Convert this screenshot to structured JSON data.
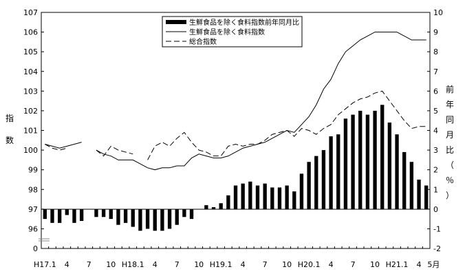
{
  "chart_data": {
    "type": "bar+line",
    "x_tick_labels": [
      "H17.1",
      "4",
      "7",
      "10",
      "H18.1",
      "4",
      "7",
      "10",
      "H19.1",
      "4",
      "7",
      "10",
      "H20.1",
      "4",
      "7",
      "10",
      "H21.1",
      "4",
      "5月"
    ],
    "left_axis": {
      "label": "指数",
      "range": [
        96,
        107
      ],
      "ticks": [
        "0",
        "96",
        "97",
        "98",
        "99",
        "100",
        "101",
        "102",
        "103",
        "104",
        "105",
        "106",
        "107"
      ],
      "break": true
    },
    "right_axis": {
      "label": "前年同月比（％）",
      "range": [
        -2,
        10
      ],
      "ticks": [
        "-2",
        "-1",
        "0",
        "1",
        "2",
        "3",
        "4",
        "5",
        "6",
        "7",
        "8",
        "9",
        "10"
      ]
    },
    "legend": {
      "position": "top-center",
      "entries": [
        {
          "label": "生鮮食品を除く食料指数前年同月比",
          "style": "bar"
        },
        {
          "label": "生鮮食品を除く食料指数",
          "style": "solid"
        },
        {
          "label": "総合指数",
          "style": "dashed"
        }
      ]
    },
    "series": [
      {
        "name": "生鮮食品を除く食料指数前年同月比",
        "axis": "right",
        "style": "bar",
        "values": [
          -0.5,
          -0.7,
          -0.7,
          -0.3,
          -0.7,
          -0.6,
          null,
          -0.4,
          -0.4,
          -0.5,
          -0.8,
          -0.7,
          -0.9,
          -1.1,
          -1.0,
          -1.1,
          -1.1,
          -1.0,
          -0.8,
          -0.4,
          -0.5,
          null,
          0.2,
          0.1,
          0.3,
          0.7,
          1.2,
          1.3,
          1.4,
          1.2,
          1.3,
          1.1,
          1.1,
          1.2,
          0.9,
          1.8,
          2.4,
          2.7,
          3.0,
          3.7,
          3.8,
          4.6,
          4.8,
          5.0,
          4.8,
          5.0,
          5.3,
          4.4,
          3.8,
          2.9,
          2.4,
          1.5,
          1.2
        ]
      },
      {
        "name": "生鮮食品を除く食料指数",
        "axis": "left",
        "style": "solid",
        "values": [
          100.3,
          100.2,
          100.1,
          100.2,
          100.3,
          100.4,
          null,
          100.0,
          99.8,
          99.7,
          99.5,
          99.5,
          99.5,
          99.3,
          99.1,
          99.0,
          99.1,
          99.1,
          99.2,
          99.2,
          99.6,
          99.8,
          99.7,
          99.6,
          99.6,
          99.7,
          99.9,
          100.1,
          100.2,
          100.3,
          100.4,
          100.6,
          100.8,
          101.0,
          100.9,
          101.3,
          101.7,
          102.3,
          103.1,
          103.6,
          104.4,
          105.0,
          105.3,
          105.6,
          105.8,
          106.0,
          106.0,
          106.0,
          106.0,
          105.8,
          105.6,
          105.6,
          105.6
        ]
      },
      {
        "name": "総合指数",
        "axis": "left",
        "style": "dashed",
        "values": [
          100.3,
          100.1,
          100.0,
          100.1,
          null,
          null,
          null,
          100.0,
          99.7,
          100.2,
          100.0,
          99.9,
          99.8,
          null,
          99.5,
          100.2,
          100.4,
          100.2,
          100.6,
          100.9,
          100.4,
          100.0,
          99.9,
          99.7,
          99.7,
          100.2,
          100.3,
          100.2,
          100.3,
          100.3,
          100.5,
          100.8,
          100.9,
          101.0,
          100.7,
          101.1,
          101.0,
          100.8,
          101.1,
          101.3,
          101.8,
          102.1,
          102.4,
          102.6,
          102.7,
          102.9,
          103.0,
          102.5,
          102.0,
          101.5,
          101.1,
          101.2,
          101.2
        ]
      }
    ]
  }
}
